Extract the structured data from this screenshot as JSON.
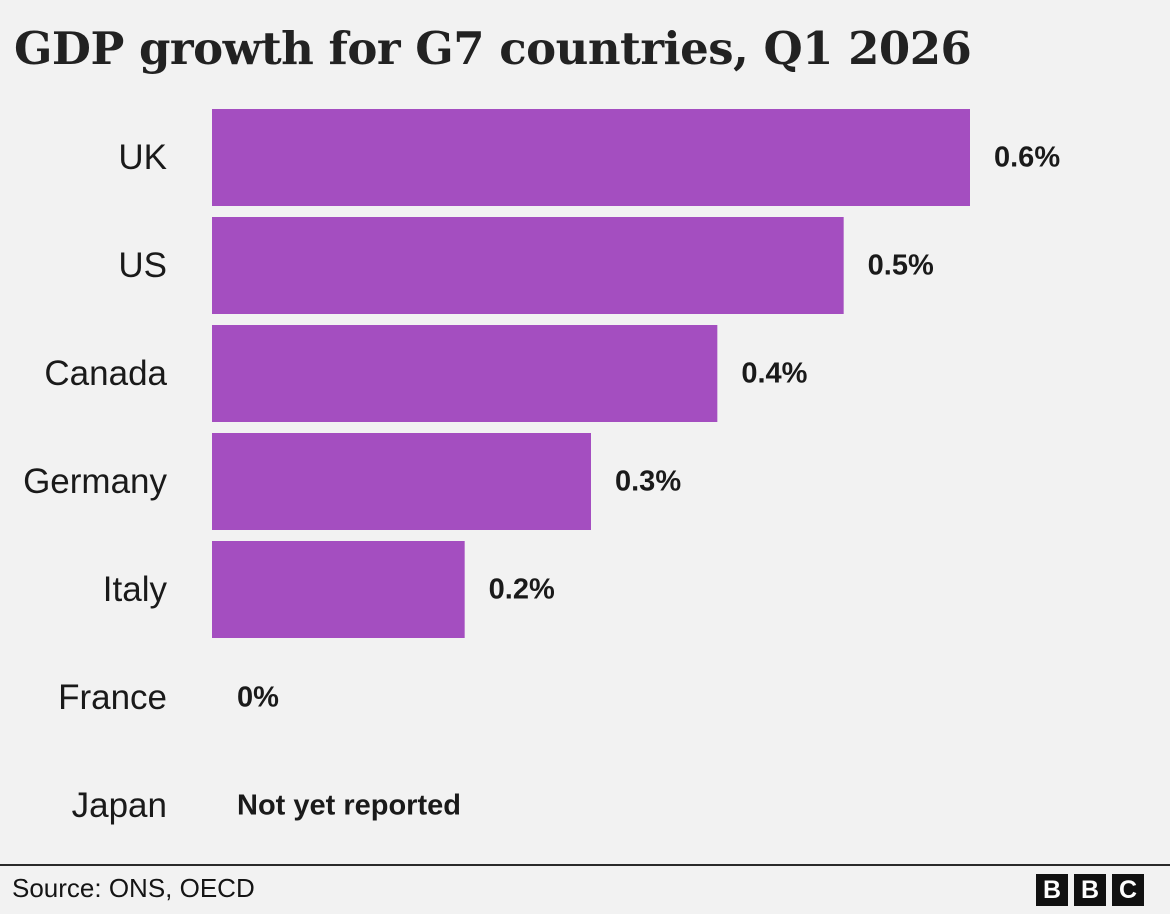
{
  "chart_data": {
    "type": "bar",
    "orientation": "horizontal",
    "title": "GDP growth for G7 countries, Q1 2026",
    "categories": [
      "UK",
      "US",
      "Canada",
      "Germany",
      "Italy",
      "France",
      "Japan"
    ],
    "values": [
      0.6,
      0.5,
      0.4,
      0.3,
      0.2,
      0.0,
      null
    ],
    "value_labels": [
      "0.6%",
      "0.5%",
      "0.4%",
      "0.3%",
      "0.2%",
      "0%",
      "Not yet reported"
    ],
    "unit": "%",
    "xlim": [
      0,
      0.6
    ],
    "grid": false,
    "legend": "none",
    "bar_color": "#a44ec0"
  },
  "footer": {
    "source": "Source: ONS, OECD",
    "logo_letters": [
      "B",
      "B",
      "C"
    ]
  }
}
